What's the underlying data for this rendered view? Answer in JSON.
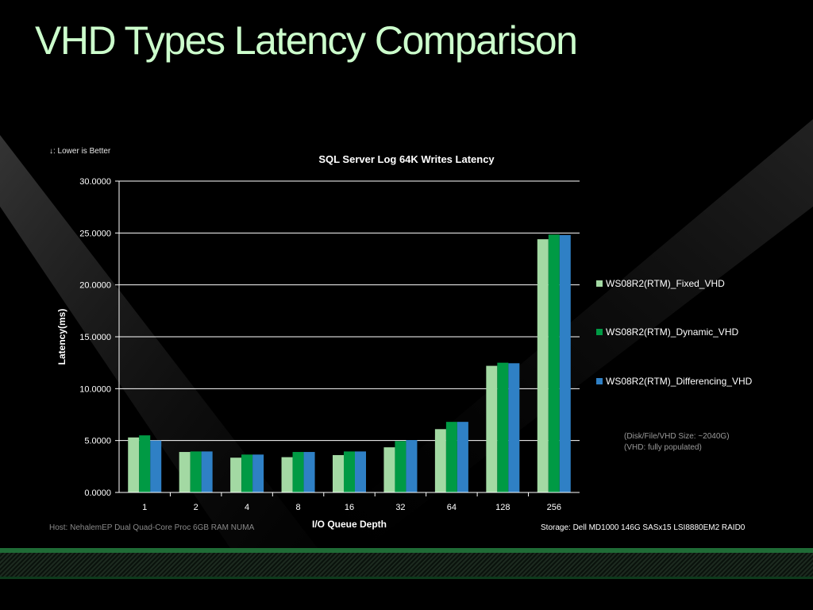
{
  "slide": {
    "title": "VHD Types Latency Comparison",
    "lower_note": "↓: Lower is Better",
    "host_note": "Host: NehalemEP Dual Quad-Core Proc 6GB RAM NUMA",
    "storage_note": "Storage: Dell MD1000 146G SASx15 LSI8880EM2 RAID0",
    "disk_note_line1": "(Disk/File/VHD Size: ~2040G)",
    "disk_note_line2": "(VHD: fully populated)"
  },
  "chart_data": {
    "type": "bar",
    "title": "SQL Server Log 64K Writes Latency",
    "xlabel": "I/O Queue Depth",
    "ylabel": "Latency(ms)",
    "ylim": [
      0,
      30
    ],
    "yticks": [
      "0.0000",
      "5.0000",
      "10.0000",
      "15.0000",
      "20.0000",
      "25.0000",
      "30.0000"
    ],
    "grid": true,
    "legend_position": "right",
    "categories": [
      "1",
      "2",
      "4",
      "8",
      "16",
      "32",
      "64",
      "128",
      "256"
    ],
    "series": [
      {
        "name": "WS08R2(RTM)_Fixed_VHD",
        "color": "#a3d9a3",
        "values": [
          5.3,
          3.9,
          3.35,
          3.4,
          3.6,
          4.35,
          6.1,
          12.2,
          24.4
        ]
      },
      {
        "name": "WS08R2(RTM)_Dynamic_VHD",
        "color": "#009a44",
        "values": [
          5.5,
          3.95,
          3.65,
          3.9,
          3.95,
          4.95,
          6.8,
          12.5,
          24.85
        ]
      },
      {
        "name": "WS08R2(RTM)_Differencing_VHD",
        "color": "#2f80c5",
        "values": [
          5.0,
          3.95,
          3.65,
          3.9,
          3.95,
          5.05,
          6.8,
          12.45,
          24.8
        ]
      }
    ]
  }
}
